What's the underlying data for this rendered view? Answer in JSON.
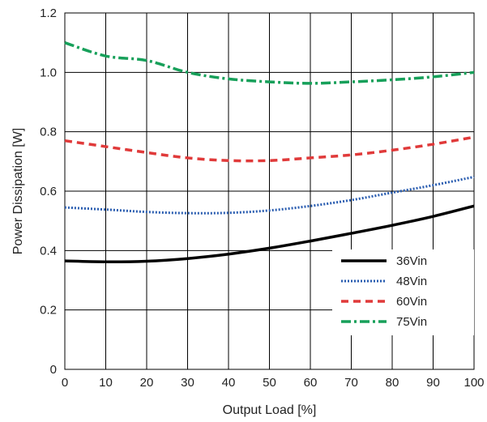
{
  "chart_data": {
    "type": "line",
    "xlabel": "Output Load [%]",
    "ylabel": "Power Dissipation [W]",
    "xlim": [
      0,
      100
    ],
    "ylim": [
      0,
      1.2
    ],
    "xticks": [
      "0",
      "10",
      "20",
      "30",
      "40",
      "50",
      "60",
      "70",
      "80",
      "90",
      "100"
    ],
    "yticks": [
      "0",
      "0.2",
      "0.4",
      "0.6",
      "0.8",
      "1.0",
      "1.2"
    ],
    "grid": true,
    "legend_position": "bottom-right",
    "x": [
      0,
      10,
      20,
      30,
      40,
      50,
      60,
      70,
      80,
      90,
      100
    ],
    "series": [
      {
        "name": "36Vin",
        "color": "#000000",
        "dash": "solid",
        "values": [
          0.365,
          0.362,
          0.364,
          0.373,
          0.388,
          0.408,
          0.432,
          0.458,
          0.485,
          0.515,
          0.55
        ]
      },
      {
        "name": "48Vin",
        "color": "#2a5db0",
        "dash": "dotted",
        "values": [
          0.545,
          0.538,
          0.53,
          0.526,
          0.527,
          0.535,
          0.55,
          0.57,
          0.595,
          0.62,
          0.648
        ]
      },
      {
        "name": "60Vin",
        "color": "#e03a3a",
        "dash": "dashed",
        "values": [
          0.77,
          0.75,
          0.73,
          0.712,
          0.703,
          0.703,
          0.712,
          0.722,
          0.738,
          0.758,
          0.782
        ]
      },
      {
        "name": "75Vin",
        "color": "#17a05a",
        "dash": "dashdot",
        "values": [
          1.1,
          1.055,
          1.04,
          1.0,
          0.978,
          0.968,
          0.963,
          0.968,
          0.975,
          0.985,
          1.0
        ]
      }
    ]
  }
}
